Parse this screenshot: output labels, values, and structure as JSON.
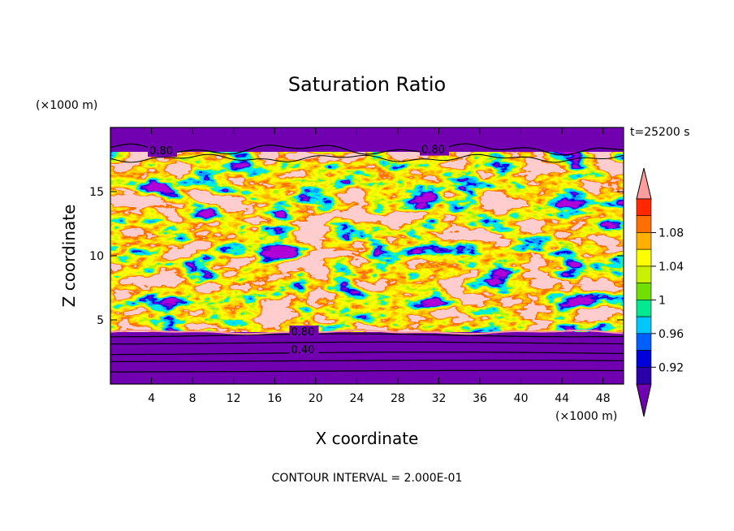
{
  "chart_data": {
    "type": "heatmap",
    "title": "Saturation Ratio",
    "xlabel": "X coordinate",
    "ylabel": "Z coordinate",
    "x_units": "(×1000 m)",
    "y_units": "(×1000 m)",
    "time_label": "t=25200 s",
    "footer": "CONTOUR INTERVAL = 2.000E-01",
    "xlim": [
      0,
      50
    ],
    "ylim": [
      0,
      20
    ],
    "x_ticks": [
      4,
      8,
      12,
      16,
      20,
      24,
      28,
      32,
      36,
      40,
      44,
      48
    ],
    "y_ticks": [
      5,
      10,
      15
    ],
    "contour_labels": [
      {
        "text": "0.80",
        "x": 3.8,
        "y": 17.9
      },
      {
        "text": "0.80",
        "x": 30.3,
        "y": 18.0
      },
      {
        "text": "0.80",
        "x": 17.6,
        "y": 3.8
      },
      {
        "text": "0.40",
        "x": 17.6,
        "y": 2.4
      }
    ],
    "colorbar": {
      "tick_labels": [
        "0.92",
        "0.96",
        "1",
        "1.04",
        "1.08"
      ],
      "tick_values": [
        0.92,
        0.96,
        1.0,
        1.04,
        1.08
      ],
      "level_min": 0.9,
      "level_step": 0.02,
      "colors": [
        "#7000b0",
        "#2a00a8",
        "#0000d8",
        "#0060ff",
        "#00c8ff",
        "#00e890",
        "#70e000",
        "#c8f000",
        "#ffff00",
        "#ffb000",
        "#ff7000",
        "#ff2800",
        "#ff9c9c"
      ]
    }
  }
}
